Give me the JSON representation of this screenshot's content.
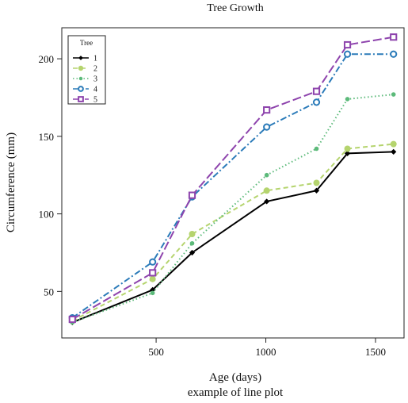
{
  "chart_data": {
    "type": "line",
    "title": "Tree Growth",
    "xlabel": "Age (days)",
    "subtitle": "example of line plot",
    "ylabel": "Circumference (mm)",
    "x": [
      118,
      484,
      664,
      1004,
      1231,
      1372,
      1582
    ],
    "xlim": [
      70,
      1630
    ],
    "ylim": [
      20,
      220
    ],
    "xticks": [
      500,
      1000,
      1500
    ],
    "yticks": [
      50,
      100,
      150,
      200
    ],
    "grid": false,
    "legend": {
      "title": "Tree",
      "position": "top-left"
    },
    "series": [
      {
        "name": "1",
        "color": "#000000",
        "marker": "diamond",
        "dash": "solid",
        "values": [
          30,
          51,
          75,
          108,
          115,
          139,
          140
        ]
      },
      {
        "name": "2",
        "color": "#b5d46e",
        "marker": "circle-filled",
        "dash": "dashed",
        "values": [
          31,
          58,
          87,
          115,
          120,
          142,
          145
        ]
      },
      {
        "name": "3",
        "color": "#5cba7a",
        "marker": "dot",
        "dash": "dotted",
        "values": [
          30,
          49,
          81,
          125,
          142,
          174,
          177
        ]
      },
      {
        "name": "4",
        "color": "#2b7bb9",
        "marker": "circle-open",
        "dash": "dashdot",
        "values": [
          33,
          69,
          111,
          156,
          172,
          203,
          203
        ]
      },
      {
        "name": "5",
        "color": "#8e44ad",
        "marker": "square-open",
        "dash": "longdash",
        "values": [
          32,
          62,
          112,
          167,
          179,
          209,
          214
        ]
      }
    ]
  }
}
